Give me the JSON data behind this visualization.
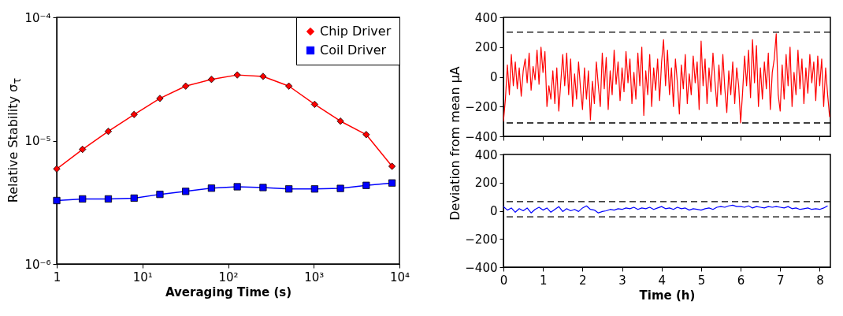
{
  "chart_data": [
    {
      "type": "line",
      "xlabel": "Averaging Time (s)",
      "ylabel": "Relative Stability σ$_{τ}$",
      "log": "xy",
      "legend": "top right",
      "grid": false,
      "x": [
        1,
        2,
        4,
        8,
        16,
        32,
        64,
        128,
        256,
        512,
        1024,
        2048,
        4096,
        8192
      ],
      "xlim": [
        1,
        10000
      ],
      "xticks": [
        {
          "value": 1,
          "label": "1"
        },
        {
          "value": 10,
          "label": "10¹"
        },
        {
          "value": 100,
          "label": "10²"
        },
        {
          "value": 1000,
          "label": "10³"
        },
        {
          "value": 10000,
          "label": "10⁴"
        }
      ],
      "ylim": [
        1e-06,
        0.0001
      ],
      "yticks": [
        {
          "value": 1e-06,
          "label": "10⁻⁶"
        },
        {
          "value": 1e-05,
          "label": "10⁻⁵"
        },
        {
          "value": 0.0001,
          "label": "10⁻⁴"
        }
      ],
      "series": [
        {
          "name": "Chip Driver",
          "color": "#ff0000",
          "marker": "diamond",
          "values": [
            5.9e-06,
            8.5e-06,
            1.19e-05,
            1.63e-05,
            2.2e-05,
            2.77e-05,
            3.14e-05,
            3.41e-05,
            3.32e-05,
            2.77e-05,
            1.97e-05,
            1.44e-05,
            1.12e-05,
            6.2e-06
          ]
        },
        {
          "name": "Coil Driver",
          "color": "#0000ff",
          "marker": "square",
          "values": [
            3.27e-06,
            3.37e-06,
            3.37e-06,
            3.42e-06,
            3.67e-06,
            3.88e-06,
            4.12e-06,
            4.23e-06,
            4.17e-06,
            4.06e-06,
            4.06e-06,
            4.1e-06,
            4.34e-06,
            4.54e-06
          ]
        }
      ]
    },
    {
      "type": "line",
      "ylabel": "Deviation from mean μA",
      "tick_labels": "y",
      "grid": false,
      "xlim": [
        0,
        8.27
      ],
      "xticks": [
        0,
        1,
        2,
        3,
        4,
        5,
        6,
        7,
        8
      ],
      "ylim": [
        -400,
        400
      ],
      "yticks": [
        {
          "value": -400,
          "label": "−400"
        },
        {
          "value": -200,
          "label": "−200"
        },
        0,
        200,
        400
      ],
      "ref_lines": [
        {
          "axis": "y",
          "value": 300,
          "color": "#000000",
          "line_style": "dashed"
        },
        {
          "axis": "y",
          "value": -310,
          "color": "#000000",
          "line_style": "dashed"
        }
      ],
      "x": [
        0,
        0.05,
        0.1,
        0.15,
        0.2,
        0.25,
        0.3,
        0.35,
        0.4,
        0.45,
        0.5,
        0.55,
        0.6,
        0.65,
        0.7,
        0.75,
        0.8,
        0.85,
        0.9,
        0.95,
        1,
        1.05,
        1.1,
        1.15,
        1.2,
        1.25,
        1.3,
        1.35,
        1.4,
        1.45,
        1.5,
        1.55,
        1.6,
        1.65,
        1.7,
        1.75,
        1.8,
        1.85,
        1.9,
        1.95,
        2,
        2.05,
        2.1,
        2.15,
        2.2,
        2.25,
        2.3,
        2.35,
        2.4,
        2.45,
        2.5,
        2.55,
        2.6,
        2.65,
        2.7,
        2.75,
        2.8,
        2.85,
        2.9,
        2.95,
        3,
        3.05,
        3.1,
        3.15,
        3.2,
        3.25,
        3.3,
        3.35,
        3.4,
        3.45,
        3.5,
        3.55,
        3.6,
        3.65,
        3.7,
        3.75,
        3.8,
        3.85,
        3.9,
        3.95,
        4,
        4.05,
        4.1,
        4.15,
        4.2,
        4.25,
        4.3,
        4.35,
        4.4,
        4.45,
        4.5,
        4.55,
        4.6,
        4.65,
        4.7,
        4.75,
        4.8,
        4.85,
        4.9,
        4.95,
        5,
        5.05,
        5.1,
        5.15,
        5.2,
        5.25,
        5.3,
        5.35,
        5.4,
        5.45,
        5.5,
        5.55,
        5.6,
        5.65,
        5.7,
        5.75,
        5.8,
        5.85,
        5.9,
        5.95,
        6,
        6.05,
        6.1,
        6.15,
        6.2,
        6.25,
        6.3,
        6.35,
        6.4,
        6.45,
        6.5,
        6.55,
        6.6,
        6.65,
        6.7,
        6.75,
        6.8,
        6.85,
        6.9,
        6.95,
        7,
        7.05,
        7.1,
        7.15,
        7.2,
        7.25,
        7.3,
        7.35,
        7.4,
        7.45,
        7.5,
        7.55,
        7.6,
        7.65,
        7.7,
        7.75,
        7.8,
        7.85,
        7.9,
        7.95,
        8,
        8.05,
        8.1,
        8.15,
        8.2,
        8.25
      ],
      "series": [
        {
          "color": "#ff0000",
          "values": [
            -300,
            -150,
            80,
            -120,
            150,
            -60,
            100,
            -80,
            60,
            -130,
            40,
            120,
            -40,
            160,
            -90,
            70,
            -20,
            180,
            -50,
            200,
            30,
            170,
            -200,
            -60,
            -150,
            40,
            -180,
            60,
            -230,
            -40,
            150,
            -60,
            160,
            -120,
            120,
            -200,
            20,
            -150,
            100,
            -80,
            -220,
            60,
            -150,
            40,
            -290,
            -30,
            -180,
            100,
            -60,
            -200,
            160,
            -80,
            130,
            -220,
            40,
            -120,
            180,
            -50,
            100,
            -160,
            60,
            -100,
            170,
            -40,
            120,
            -180,
            30,
            -150,
            160,
            -60,
            200,
            -260,
            40,
            -120,
            150,
            -200,
            60,
            -90,
            120,
            -160,
            100,
            250,
            -60,
            180,
            -120,
            60,
            -200,
            120,
            -40,
            -250,
            80,
            -80,
            150,
            -180,
            20,
            -120,
            140,
            -40,
            100,
            -220,
            240,
            -60,
            120,
            -180,
            60,
            -100,
            160,
            -30,
            -200,
            80,
            -120,
            150,
            -80,
            -240,
            40,
            -120,
            100,
            -180,
            60,
            -60,
            -310,
            -100,
            140,
            -60,
            180,
            -140,
            250,
            -40,
            210,
            -200,
            60,
            -150,
            100,
            -80,
            160,
            -220,
            30,
            120,
            290,
            -120,
            -230,
            80,
            -150,
            150,
            -60,
            200,
            -200,
            30,
            -120,
            180,
            -80,
            120,
            -180,
            60,
            -110,
            150,
            -40,
            100,
            -160,
            140,
            -60,
            120,
            -200,
            60,
            -120,
            -270
          ]
        }
      ]
    },
    {
      "type": "line",
      "xlabel": "Time (h)",
      "grid": false,
      "xlim": [
        0,
        8.27
      ],
      "xticks": [
        0,
        1,
        2,
        3,
        4,
        5,
        6,
        7,
        8
      ],
      "ylim": [
        -400,
        400
      ],
      "yticks": [
        {
          "value": -400,
          "label": "−400"
        },
        {
          "value": -200,
          "label": "−200"
        },
        0,
        200,
        400
      ],
      "ref_lines": [
        {
          "axis": "y",
          "value": 65,
          "color": "#000000",
          "line_style": "dashed"
        },
        {
          "axis": "y",
          "value": -43,
          "color": "#000000",
          "line_style": "dashed"
        }
      ],
      "x": [
        0,
        0.1,
        0.2,
        0.3,
        0.4,
        0.5,
        0.6,
        0.7,
        0.8,
        0.9,
        1,
        1.1,
        1.2,
        1.3,
        1.4,
        1.5,
        1.6,
        1.7,
        1.8,
        1.9,
        2,
        2.1,
        2.2,
        2.3,
        2.4,
        2.5,
        2.6,
        2.7,
        2.8,
        2.9,
        3,
        3.1,
        3.2,
        3.3,
        3.4,
        3.5,
        3.6,
        3.7,
        3.8,
        3.9,
        4,
        4.1,
        4.2,
        4.3,
        4.4,
        4.5,
        4.6,
        4.7,
        4.8,
        4.9,
        5,
        5.1,
        5.2,
        5.3,
        5.4,
        5.5,
        5.6,
        5.7,
        5.8,
        5.9,
        6,
        6.1,
        6.2,
        6.3,
        6.4,
        6.5,
        6.6,
        6.7,
        6.8,
        6.9,
        7,
        7.1,
        7.2,
        7.3,
        7.4,
        7.5,
        7.6,
        7.7,
        7.8,
        7.9,
        8,
        8.1,
        8.2
      ],
      "series": [
        {
          "color": "#0000ff",
          "values": [
            30,
            5,
            20,
            -10,
            15,
            0,
            20,
            -15,
            10,
            25,
            5,
            20,
            -10,
            10,
            30,
            -5,
            15,
            0,
            10,
            -5,
            20,
            35,
            10,
            5,
            -15,
            -5,
            0,
            10,
            5,
            15,
            10,
            20,
            15,
            25,
            10,
            20,
            15,
            25,
            10,
            20,
            30,
            15,
            20,
            10,
            25,
            15,
            20,
            5,
            15,
            10,
            5,
            15,
            20,
            10,
            25,
            30,
            25,
            35,
            40,
            30,
            30,
            25,
            35,
            20,
            30,
            25,
            20,
            30,
            25,
            30,
            25,
            20,
            30,
            15,
            20,
            10,
            15,
            20,
            10,
            15,
            10,
            20,
            35
          ]
        }
      ]
    }
  ]
}
